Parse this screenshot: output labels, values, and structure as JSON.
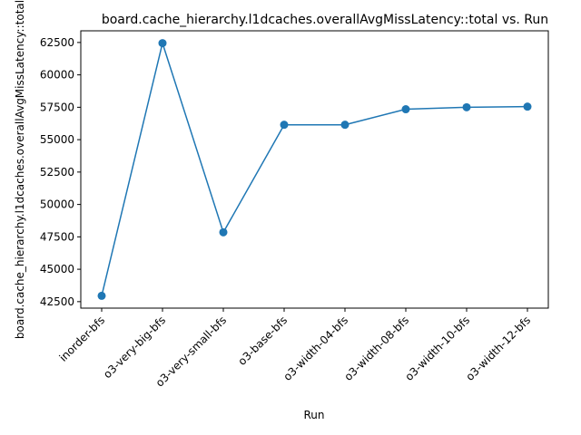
{
  "chart_data": {
    "type": "line",
    "title": "board.cache_hierarchy.l1dcaches.overallAvgMissLatency::total vs. Run",
    "xlabel": "Run",
    "ylabel": "board.cache_hierarchy.l1dcaches.overallAvgMissLatency::total",
    "categories": [
      "inorder-bfs",
      "o3-very-big-bfs",
      "o3-very-small-bfs",
      "o3-base-bfs",
      "o3-width-04-bfs",
      "o3-width-08-bfs",
      "o3-width-10-bfs",
      "o3-width-12-bfs"
    ],
    "series": [
      {
        "values": [
          42950,
          62450,
          47850,
          56150,
          56150,
          57350,
          57500,
          57550
        ],
        "color": "#1f77b4"
      }
    ],
    "yticks": [
      42500,
      45000,
      47500,
      50000,
      52500,
      55000,
      57500,
      60000,
      62500
    ],
    "ylim": [
      42000,
      63400
    ],
    "grid": false,
    "legend": "none",
    "marker": "circle"
  }
}
